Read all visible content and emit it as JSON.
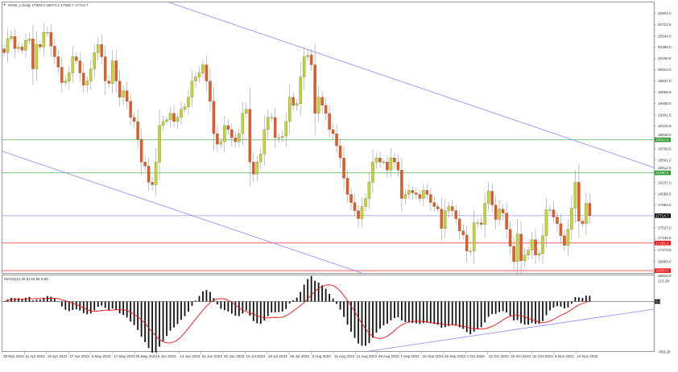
{
  "window": {
    "title": "HK50_n,Daily 17920.0 18074.2 17605.7 17714.7",
    "indicator_title": "MACD(12,26,9) 53.86 5.86"
  },
  "colors": {
    "bull": "#c3d62b",
    "bear": "#ea5a1f",
    "support_green": "#7cc47c",
    "resistance_red": "#ff5a5a",
    "trendline": "#8a8aff",
    "current_price": "#9a9af0",
    "macd_signal": "#ee1111"
  },
  "chart_data": [
    {
      "type": "candlestick",
      "title": "HK50_n,Daily 17920.0 18074.2 17605.7 17714.7",
      "ylim": [
        16801,
        21072
      ],
      "grid": false,
      "y_tick_labels": [
        "20901.0",
        "20722.5",
        "20544.0",
        "20369.0",
        "20190.5",
        "20012.0",
        "19837.0",
        "19658.5",
        "19480.0",
        "19301.5",
        "19126.5",
        "18948.0",
        "18769.5",
        "18591.0",
        "18412.5",
        "18237.0",
        "18058.5",
        "17884.0",
        "17527.0",
        "17348.5",
        "17173.5",
        "16995.0",
        "16816.5"
      ],
      "x_tick_labels": [
        "29 Mar 2023",
        "11 Apr 2023",
        "19 Apr 2023",
        "27 Apr 2023",
        "9 May 2023",
        "17 May 2023",
        "25 May 2023",
        "5 Jun 2023",
        "13 Jun 2023",
        "21 Jun 2023",
        "30 Jun 2023",
        "10 Jul 2023",
        "18 Jul 2023",
        "26 Jul 2023",
        "3 Aug 2023",
        "11 Aug 2023",
        "21 Aug 2023",
        "29 Aug 2023",
        "7 Sep 2023",
        "15 Sep 2023",
        "25 Sep 2023",
        "4 Oct 2023",
        "12 Oct 2023",
        "20 Oct 2023",
        "31 Oct 2023",
        "8 Nov 2023",
        "16 Nov 2023"
      ],
      "close": [
        20281,
        20498,
        20536,
        20345,
        20370,
        20319,
        20472,
        20498,
        20026,
        20409,
        20370,
        20600,
        20600,
        20383,
        20217,
        20052,
        19809,
        19835,
        19962,
        20217,
        20154,
        19962,
        19771,
        19835,
        20026,
        20281,
        20409,
        20217,
        19835,
        19797,
        20154,
        19835,
        19580,
        19682,
        19516,
        19261,
        19197,
        18917,
        18560,
        18496,
        18241,
        18203,
        18560,
        19134,
        19197,
        19223,
        19325,
        19197,
        19261,
        19389,
        19427,
        19580,
        19835,
        19899,
        19962,
        20090,
        19835,
        19516,
        19006,
        18840,
        18879,
        19134,
        19070,
        18942,
        18879,
        19006,
        19325,
        19389,
        18560,
        18369,
        18560,
        18687,
        19070,
        19261,
        19261,
        18942,
        18942,
        18968,
        19197,
        19580,
        19452,
        19478,
        19899,
        20217,
        20243,
        20090,
        19325,
        19580,
        19452,
        19325,
        19070,
        19006,
        18815,
        18624,
        18305,
        18050,
        17922,
        17795,
        17667,
        17859,
        17986,
        18241,
        18560,
        18624,
        18560,
        18560,
        18432,
        18624,
        18560,
        18432,
        17986,
        18050,
        18114,
        18075,
        18050,
        17986,
        18114,
        18050,
        17922,
        17859,
        17820,
        17514,
        17795,
        17859,
        17795,
        17667,
        17476,
        17412,
        17157,
        17157,
        17604,
        17604,
        17578,
        17910,
        18101,
        17884,
        17655,
        17820,
        17757,
        17502,
        17234,
        16992,
        17425,
        17004,
        17094,
        17170,
        17336,
        17094,
        17119,
        17400,
        17808,
        17808,
        17693,
        17591,
        17400,
        17247,
        17502,
        17833,
        18241,
        17629,
        17591,
        17910,
        17714.7
      ],
      "horizontal_levels": [
        {
          "price": 18910,
          "label": "18910.0",
          "kind": "green"
        },
        {
          "price": 18390,
          "label": "18390.0",
          "kind": "green"
        },
        {
          "price": 17714.7,
          "label": "17714.7",
          "kind": "current"
        },
        {
          "price": 17285,
          "label": "17285.0",
          "kind": "red"
        },
        {
          "price": 16850,
          "label": "16850.0",
          "kind": "red"
        }
      ]
    },
    {
      "type": "bar+line",
      "title": "MACD(12,26,9) 53.86 5.86",
      "ylim": [
        -456.28,
        215.28
      ],
      "y_tick_labels": [
        "215.28",
        "0.00",
        "-456.28"
      ],
      "params": [
        12,
        26,
        9
      ]
    }
  ]
}
